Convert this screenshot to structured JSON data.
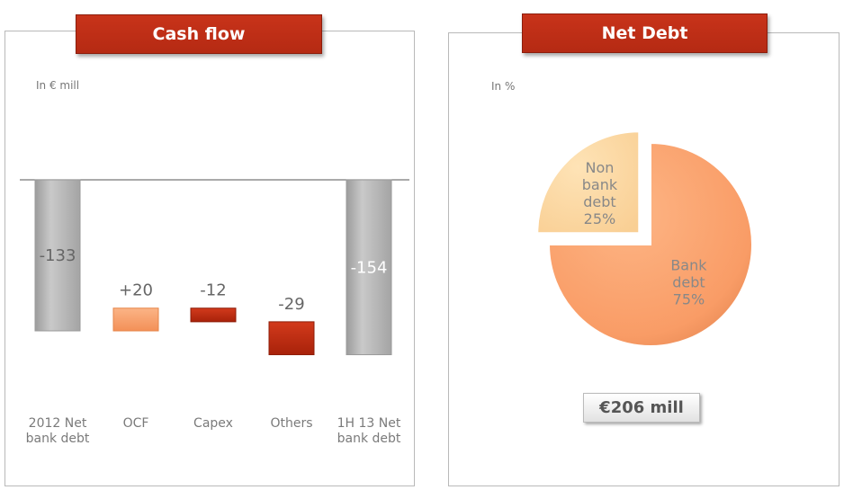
{
  "left_panel": {
    "title": "Cash flow",
    "unit": "In € mill"
  },
  "right_panel": {
    "title": "Net Debt",
    "unit": "In %",
    "total_label": "€206 mill"
  },
  "chart_data": [
    {
      "type": "bar",
      "subtype": "waterfall",
      "categories": [
        "2012  Net\nbank debt",
        "OCF",
        "Capex",
        "Others",
        "1H 13 Net\nbank debt"
      ],
      "values": [
        -133,
        20,
        -12,
        -29,
        -154
      ],
      "labels": [
        "-133",
        "+20",
        "-12",
        "-29",
        "-154"
      ],
      "kinds": [
        "total",
        "delta",
        "delta",
        "delta",
        "total"
      ],
      "colors": {
        "total": "#b3b3b3",
        "increase": "#f9a26e",
        "decrease": "#c12a0e"
      }
    },
    {
      "type": "pie",
      "slices": [
        {
          "label": "Bank\ndebt\n75%",
          "value": 75,
          "color": "#fca26c"
        },
        {
          "label": "Non\nbank\ndebt\n25%",
          "value": 25,
          "color": "#fdd9a3",
          "exploded": true
        }
      ]
    }
  ]
}
